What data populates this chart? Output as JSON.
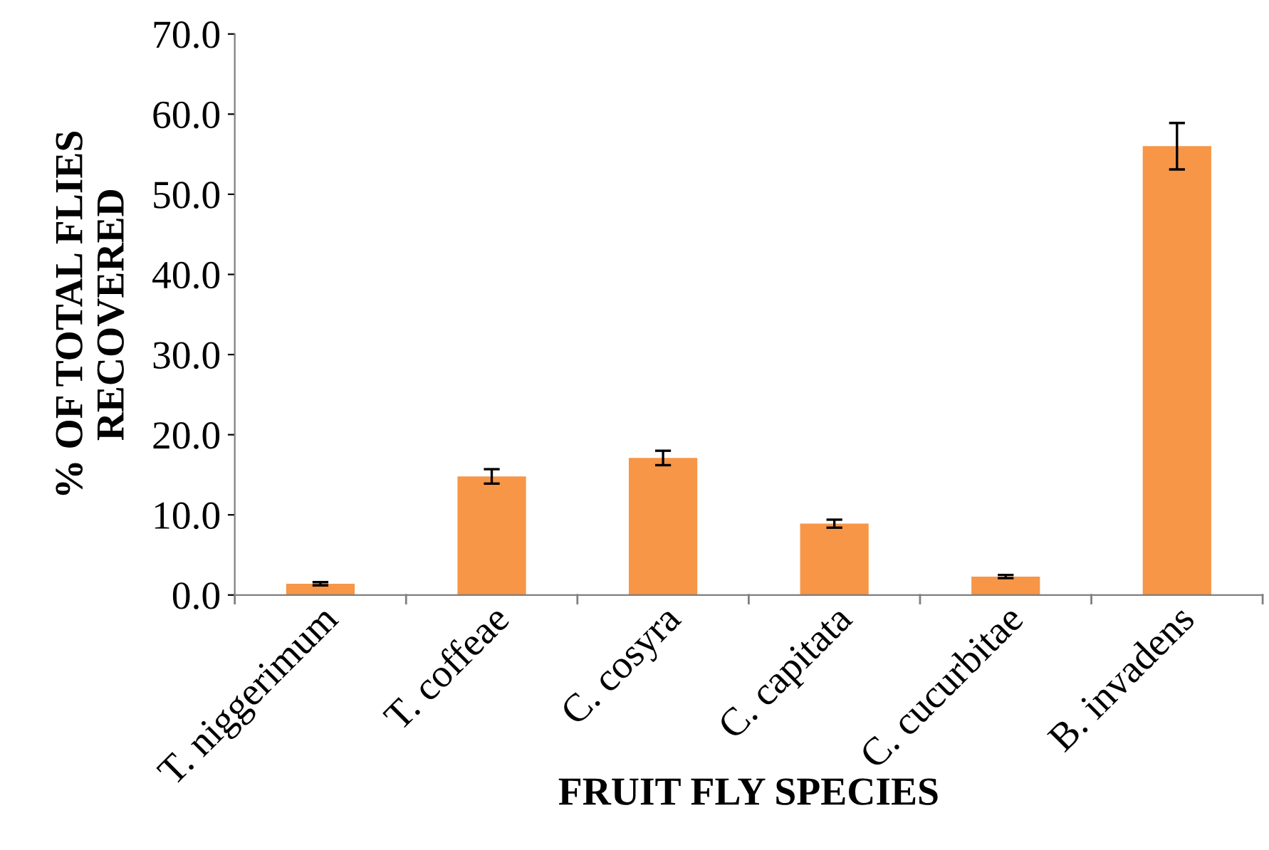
{
  "chart_data": {
    "type": "bar",
    "xlabel": "FRUIT FLY SPECIES",
    "ylabel": "% OF TOTAL FLIES\nRECOVERED",
    "categories": [
      "T. niggerimum",
      "T. coffeae",
      "C. cosyra",
      "C. capitata",
      "C. cucurbitae",
      "B. invadens"
    ],
    "values": [
      1.4,
      14.8,
      17.1,
      8.9,
      2.3,
      56.0
    ],
    "errors": [
      0.2,
      0.9,
      0.9,
      0.5,
      0.2,
      2.9
    ],
    "color": "#f79646",
    "ylim": [
      0,
      70
    ],
    "yticks": [
      {
        "value": 0,
        "label": "0.0"
      },
      {
        "value": 10,
        "label": "10.0"
      },
      {
        "value": 20,
        "label": "20.0"
      },
      {
        "value": 30,
        "label": "30.0"
      },
      {
        "value": 40,
        "label": "40.0"
      },
      {
        "value": 50,
        "label": "50.0"
      },
      {
        "value": 60,
        "label": "60.0"
      },
      {
        "value": 70,
        "label": "70.0"
      }
    ],
    "grid": false
  }
}
